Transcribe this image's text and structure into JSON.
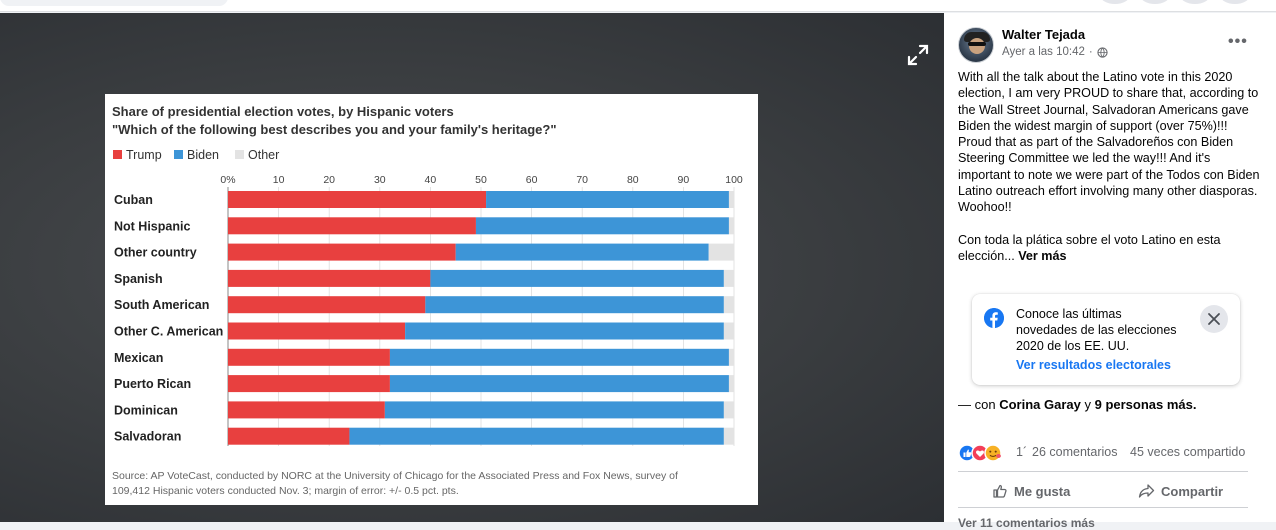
{
  "post": {
    "author": "Walter Tejada",
    "timestamp": "Ayer a las 10:42",
    "more_icon": "•••",
    "body_p1": "With all the talk about the Latino vote in this 2020 election, I am very PROUD to share that, according to the Wall Street Journal, Salvadoran Americans gave Biden the widest margin of support (over 75%)!!! Proud that as part of the Salvadoreños con Biden Steering Committee we led the way!!! And it's important to note we were part of the Todos con Biden Latino outreach effort involving many other diasporas. Woohoo!!",
    "body_p2": "Con toda la plática sobre el voto Latino en esta elección...",
    "see_more": "Ver más",
    "info_card": {
      "text": "Conoce las últimas novedades de las elecciones 2020 de los EE. UU.",
      "link": "Ver resultados electorales"
    },
    "with_prefix": "— con",
    "with_person": "Corina Garay",
    "with_connector": "y",
    "with_others": "9 personas más.",
    "reaction_count": "1´",
    "comments": "26 comentarios",
    "shares": "45 veces compartido",
    "like_label": "Me gusta",
    "share_label": "Compartir",
    "more_comments": "Ver 11 comentarios más"
  },
  "colors": {
    "trump": "#e8403f",
    "biden": "#3d95d7",
    "other": "#e3e3e3",
    "link": "#1877f2"
  },
  "chart_data": {
    "type": "bar",
    "orientation": "horizontal-stacked",
    "title": "Share of presidential election votes, by Hispanic voters",
    "subtitle": "\"Which of the following best describes you and your family's heritage?\"",
    "legend": [
      "Trump",
      "Biden",
      "Other"
    ],
    "x_ticks": [
      "0%",
      "10",
      "20",
      "30",
      "40",
      "50",
      "60",
      "70",
      "80",
      "90",
      "100"
    ],
    "xlim": [
      0,
      100
    ],
    "categories": [
      "Cuban",
      "Not Hispanic",
      "Other country",
      "Spanish",
      "South American",
      "Other C. American",
      "Mexican",
      "Puerto Rican",
      "Dominican",
      "Salvadoran"
    ],
    "series": [
      {
        "name": "Trump",
        "values": [
          51,
          49,
          45,
          40,
          39,
          35,
          32,
          32,
          31,
          24
        ]
      },
      {
        "name": "Biden",
        "values": [
          48,
          50,
          50,
          58,
          59,
          63,
          67,
          67,
          67,
          74
        ]
      },
      {
        "name": "Other",
        "values": [
          1,
          1,
          5,
          2,
          2,
          2,
          1,
          1,
          2,
          2
        ]
      }
    ],
    "source_line1": "Source: AP VoteCast, conducted by NORC at the University of Chicago for the Associated Press and Fox News, survey of",
    "source_line2": "109,412 Hispanic voters conducted Nov. 3; margin of error: +/- 0.5 pct. pts."
  }
}
